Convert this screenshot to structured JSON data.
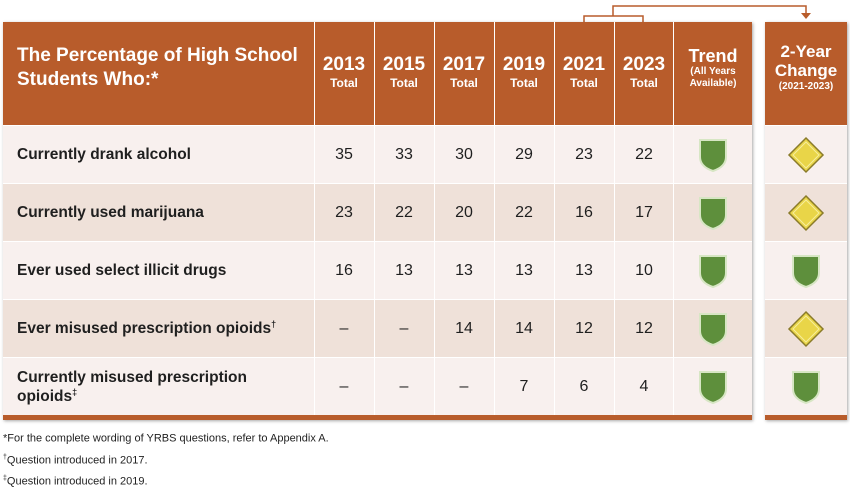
{
  "header": {
    "title": "The Percentage of High School Students Who:*",
    "years": [
      {
        "year": "2013",
        "sub": "Total"
      },
      {
        "year": "2015",
        "sub": "Total"
      },
      {
        "year": "2017",
        "sub": "Total"
      },
      {
        "year": "2019",
        "sub": "Total"
      },
      {
        "year": "2021",
        "sub": "Total"
      },
      {
        "year": "2023",
        "sub": "Total"
      }
    ],
    "trend": {
      "label": "Trend",
      "sub1": "(All Years",
      "sub2": "Available)"
    },
    "change": {
      "label1": "2-Year",
      "label2": "Change",
      "sub": "(2021-2023)"
    }
  },
  "rows": [
    {
      "label": "Currently drank alcohol",
      "mark": "",
      "values": [
        "35",
        "33",
        "30",
        "29",
        "23",
        "22"
      ],
      "trend_icon": "green-shield-icon",
      "change_icon": "yellow-diamond-icon"
    },
    {
      "label": "Currently used marijuana",
      "mark": "",
      "values": [
        "23",
        "22",
        "20",
        "22",
        "16",
        "17"
      ],
      "trend_icon": "green-shield-icon",
      "change_icon": "yellow-diamond-icon"
    },
    {
      "label": "Ever used select illicit drugs",
      "mark": "",
      "values": [
        "16",
        "13",
        "13",
        "13",
        "13",
        "10"
      ],
      "trend_icon": "green-shield-icon",
      "change_icon": "green-shield-icon"
    },
    {
      "label": "Ever misused prescription opioids",
      "mark": "†",
      "values": [
        "–",
        "–",
        "14",
        "14",
        "12",
        "12"
      ],
      "trend_icon": "green-shield-icon",
      "change_icon": "yellow-diamond-icon"
    },
    {
      "label": "Currently misused prescription opioids",
      "mark": "‡",
      "values": [
        "–",
        "–",
        "–",
        "7",
        "6",
        "4"
      ],
      "trend_icon": "green-shield-icon",
      "change_icon": "green-shield-icon"
    }
  ],
  "footnotes": [
    {
      "mark": "",
      "text": "*For the complete wording of YRBS questions, refer to Appendix A."
    },
    {
      "mark": "†",
      "text": "Question introduced in 2017."
    },
    {
      "mark": "‡",
      "text": "Question introduced in 2019."
    }
  ],
  "colors": {
    "header": "#b85c2b",
    "row_light": "#f8f0ee",
    "row_dark": "#efe1d9",
    "shield": "#5e8f3c",
    "diamond": "#e9d548"
  }
}
